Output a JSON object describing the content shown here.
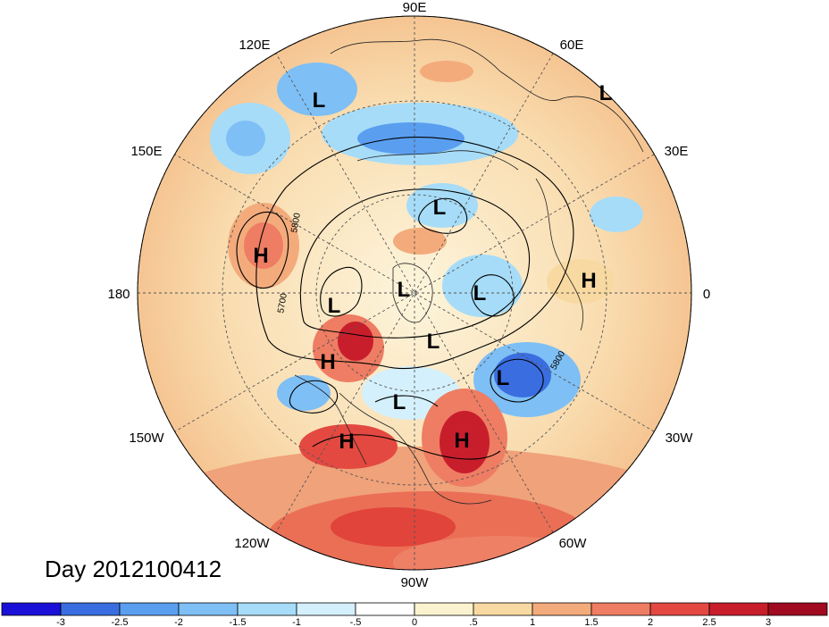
{
  "title": "Day 2012100412",
  "longitude_labels": [
    "90E",
    "60E",
    "30E",
    "0",
    "30W",
    "60W",
    "90W",
    "120W",
    "150W",
    "180",
    "150E",
    "120E"
  ],
  "pressure_systems": [
    {
      "type": "L"
    },
    {
      "type": "L"
    },
    {
      "type": "L"
    },
    {
      "type": "L"
    },
    {
      "type": "L"
    },
    {
      "type": "L"
    },
    {
      "type": "L"
    },
    {
      "type": "L"
    },
    {
      "type": "L"
    },
    {
      "type": "H"
    },
    {
      "type": "H"
    },
    {
      "type": "H"
    },
    {
      "type": "H"
    },
    {
      "type": "H"
    }
  ],
  "contour_labels": [
    "5800",
    "5700",
    "5800"
  ],
  "colorbar": {
    "colors": [
      "#1a10d8",
      "#3a6ee0",
      "#5a9ef0",
      "#7ebff5",
      "#a6dcf8",
      "#d4f0fc",
      "#ffffff",
      "#fbf3cf",
      "#f8d9a1",
      "#f4ab7c",
      "#ee7d63",
      "#e34941",
      "#c81e2c",
      "#a00a20"
    ],
    "labels": [
      "-3",
      "-2.5",
      "-2",
      "-1.5",
      "-1",
      "-.5",
      "0",
      ".5",
      "1",
      "1.5",
      "2",
      "2.5",
      "3"
    ]
  }
}
